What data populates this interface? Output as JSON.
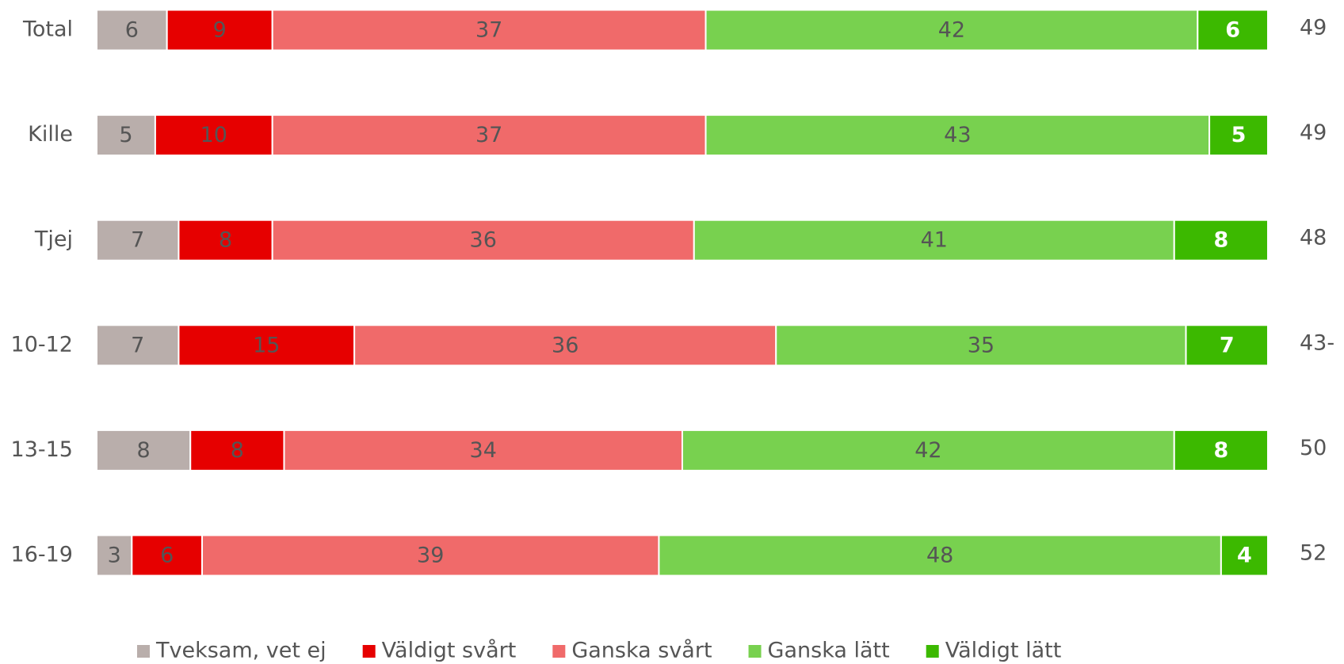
{
  "chart_data": {
    "type": "stacked_bar_horizontal",
    "categories": [
      "Total",
      "Kille",
      "Tjej",
      "10-12",
      "13-15",
      "16-19"
    ],
    "series": [
      {
        "name": "Tveksam, vet ej",
        "color": "#b9aeab",
        "values": [
          6,
          5,
          7,
          7,
          8,
          3
        ]
      },
      {
        "name": "Väldigt svårt",
        "color": "#e60000",
        "values": [
          9,
          10,
          8,
          15,
          8,
          6
        ]
      },
      {
        "name": "Ganska svårt",
        "color": "#f06a6a",
        "values": [
          37,
          37,
          36,
          36,
          34,
          39
        ]
      },
      {
        "name": "Ganska lätt",
        "color": "#78d14f",
        "values": [
          42,
          43,
          41,
          35,
          42,
          48
        ]
      },
      {
        "name": "Väldigt lätt",
        "color": "#3cb900",
        "values": [
          6,
          5,
          8,
          7,
          8,
          4
        ]
      }
    ],
    "annotations": [
      "49",
      "49",
      "48",
      "43-",
      "50",
      "52"
    ],
    "xlim": [
      0,
      100
    ],
    "legend": "bottom"
  }
}
